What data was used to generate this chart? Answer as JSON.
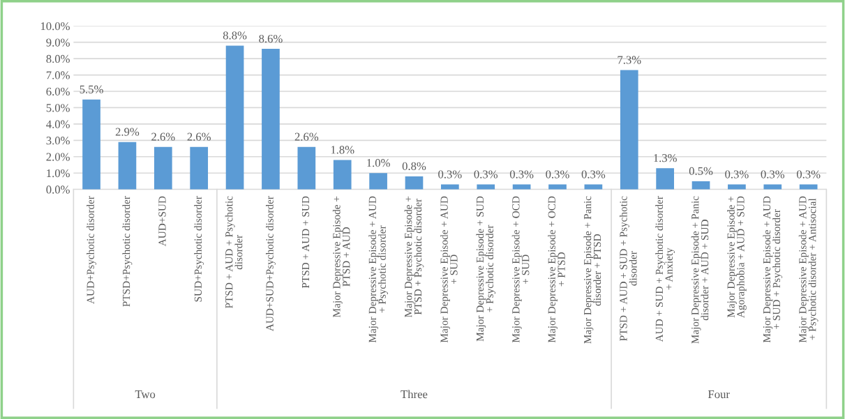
{
  "chart_data": {
    "type": "bar",
    "categories": [
      "AUD+Psychotic disorder",
      "PTSD+Psychotic disorder",
      "AUD+SUD",
      "SUD+Psychotic disorder",
      "PTSD + AUD + Psychotic\ndisorder",
      "AUD+SUD+Psychotic disorder",
      "PTSD + AUD + SUD",
      "Major Depressive Episode +\nPTSD + AUD",
      "Major Depressive Episode + AUD\n+ Psychotic disorder",
      "Major Depressive Episode +\nPTSD + Psychotic disorder",
      "Major Depressive Episode + AUD\n+ SUD",
      "Major Depressive Episode + SUD\n+ Psychotic disorder",
      "Major Depressive Episode + OCD\n+ SUD",
      "Major Depressive Episode + OCD\n+ PTSD",
      "Major Depressive Episode + Panic\ndisorder + PTSD",
      "PTSD + AUD + SUD + Psychotic\ndisorder",
      "AUD + SUD + Psychotic disorder\n+ Anxiety",
      "Major Depressive Episode + Panic\ndisorder + AUD + SUD",
      "Major Depressive Episode +\nAgoraphobia + AUD + SUD",
      "Major Depressive Episode + AUD\n+ SUD + Psychotic disorder",
      "Major Depressive Episode + AUD\n+ Psychotic disorder + Antisocial"
    ],
    "values": [
      5.5,
      2.9,
      2.6,
      2.6,
      8.8,
      8.6,
      2.6,
      1.8,
      1.0,
      0.8,
      0.3,
      0.3,
      0.3,
      0.3,
      0.3,
      7.3,
      1.3,
      0.5,
      0.3,
      0.3,
      0.3
    ],
    "value_labels": [
      "5.5%",
      "2.9%",
      "2.6%",
      "2.6%",
      "8.8%",
      "8.6%",
      "2.6%",
      "1.8%",
      "1.0%",
      "0.8%",
      "0.3%",
      "0.3%",
      "0.3%",
      "0.3%",
      "0.3%",
      "7.3%",
      "1.3%",
      "0.5%",
      "0.3%",
      "0.3%",
      "0.3%"
    ],
    "color": "#5b9bd5",
    "ylim": [
      0,
      10
    ],
    "yticks": [
      {
        "value": 0,
        "label": "0.0%"
      },
      {
        "value": 1,
        "label": "1.0%"
      },
      {
        "value": 2,
        "label": "2.0%"
      },
      {
        "value": 3,
        "label": "3.0%"
      },
      {
        "value": 4,
        "label": "4.0%"
      },
      {
        "value": 5,
        "label": "5.0%"
      },
      {
        "value": 6,
        "label": "6.0%"
      },
      {
        "value": 7,
        "label": "7.0%"
      },
      {
        "value": 8,
        "label": "8.0%"
      },
      {
        "value": 9,
        "label": "9.0%"
      },
      {
        "value": 10,
        "label": "10.0%"
      }
    ],
    "grid": "y",
    "legend": false,
    "annotations": [
      "Two",
      "Three",
      "Four"
    ]
  }
}
